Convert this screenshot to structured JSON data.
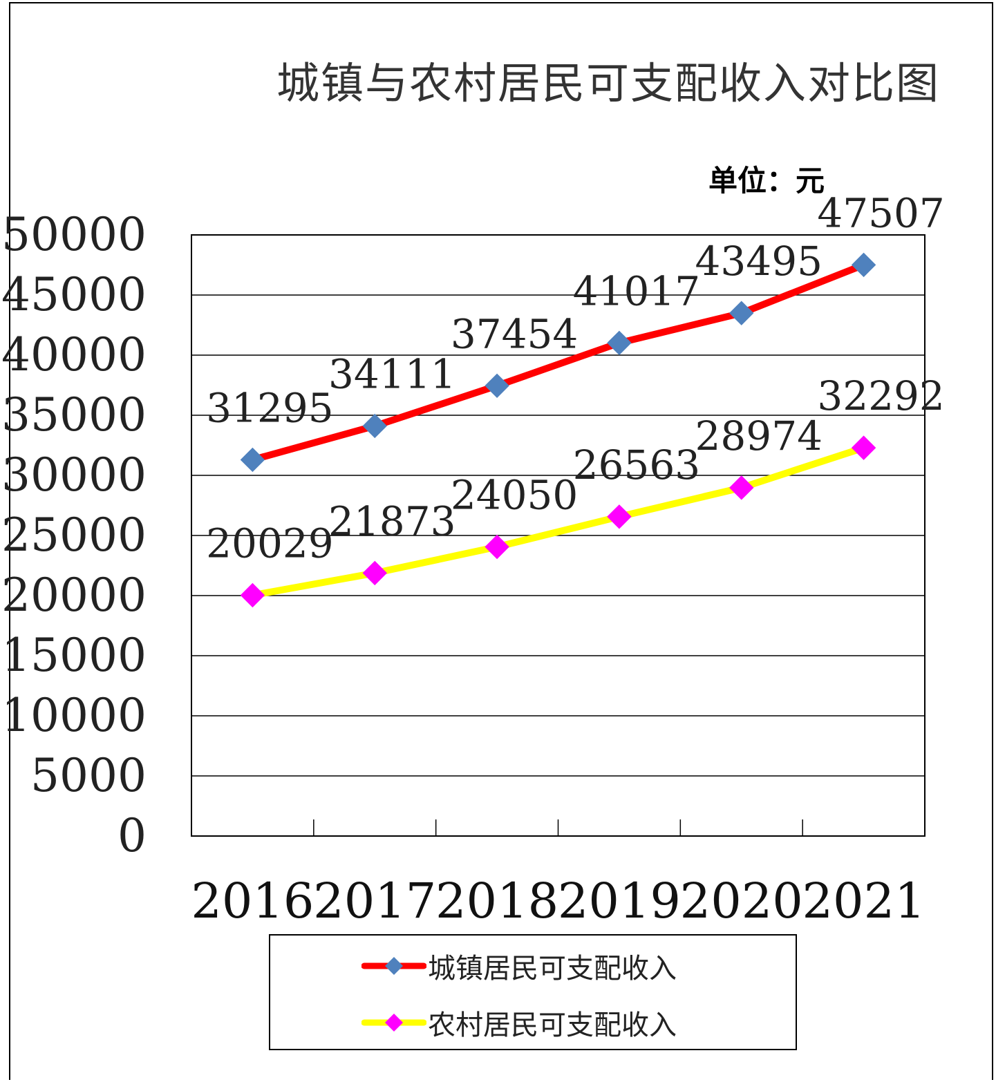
{
  "chart_data": {
    "type": "line",
    "title": "城镇与农村居民可支配收入对比图",
    "unit_label": "单位：元",
    "categories": [
      "2016",
      "2017",
      "2018",
      "2019",
      "2020",
      "2021"
    ],
    "ylim": [
      0,
      50000
    ],
    "yticks": [
      "0",
      "5000",
      "10000",
      "15000",
      "20000",
      "25000",
      "30000",
      "35000",
      "40000",
      "45000",
      "50000"
    ],
    "grid": true,
    "legend_position": "bottom",
    "series": [
      {
        "name": "城镇居民可支配收入",
        "values": [
          31295,
          34111,
          37454,
          41017,
          43495,
          47507
        ],
        "labels": [
          "31295",
          "34111",
          "37454",
          "41017",
          "43495",
          "47507"
        ],
        "line_color": "#ff0000",
        "marker_color": "#4f81bd",
        "marker": "diamond"
      },
      {
        "name": "农村居民可支配收入",
        "values": [
          20029,
          21873,
          24050,
          26563,
          28974,
          32292
        ],
        "labels": [
          "20029",
          "21873",
          "24050",
          "26563",
          "28974",
          "32292"
        ],
        "line_color": "#ffff00",
        "marker_color": "#ff00ff",
        "marker": "diamond"
      }
    ]
  }
}
